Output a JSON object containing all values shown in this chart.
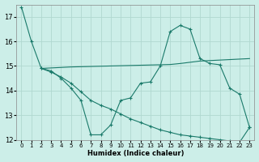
{
  "xlabel": "Humidex (Indice chaleur)",
  "bg_color": "#cceee8",
  "line_color": "#1a7a6a",
  "grid_color": "#b0d8d0",
  "xlim": [
    -0.5,
    23.5
  ],
  "ylim": [
    12,
    17.5
  ],
  "yticks": [
    12,
    13,
    14,
    15,
    16,
    17
  ],
  "xticks": [
    0,
    1,
    2,
    3,
    4,
    5,
    6,
    7,
    8,
    9,
    10,
    11,
    12,
    13,
    14,
    15,
    16,
    17,
    18,
    19,
    20,
    21,
    22,
    23
  ],
  "line1_x": [
    0,
    1,
    2,
    3,
    4,
    5,
    6,
    7,
    8,
    9,
    10,
    11,
    12,
    13,
    14,
    15,
    16,
    17,
    18,
    19,
    20,
    21,
    22,
    23
  ],
  "line1_y": [
    17.4,
    16.0,
    14.9,
    14.8,
    14.5,
    14.1,
    13.6,
    12.2,
    12.2,
    12.6,
    13.6,
    13.7,
    14.3,
    14.35,
    15.0,
    16.4,
    16.65,
    16.5,
    15.3,
    15.1,
    15.05,
    14.1,
    13.85,
    12.5
  ],
  "line2_x": [
    2,
    3,
    4,
    5,
    6,
    7,
    8,
    9,
    10,
    11,
    12,
    13,
    14,
    15,
    16,
    17,
    18,
    19,
    20,
    21,
    22,
    23
  ],
  "line2_y": [
    14.9,
    14.92,
    14.94,
    14.96,
    14.97,
    14.98,
    14.99,
    15.0,
    15.01,
    15.02,
    15.03,
    15.04,
    15.05,
    15.06,
    15.1,
    15.15,
    15.2,
    15.22,
    15.24,
    15.26,
    15.28,
    15.3
  ],
  "line3_x": [
    2,
    3,
    4,
    5,
    6,
    7,
    8,
    9,
    10,
    11,
    12,
    13,
    14,
    15,
    16,
    17,
    18,
    19,
    20,
    21,
    22,
    23
  ],
  "line3_y": [
    14.9,
    14.75,
    14.55,
    14.3,
    13.95,
    13.6,
    13.4,
    13.25,
    13.05,
    12.85,
    12.7,
    12.55,
    12.4,
    12.3,
    12.2,
    12.15,
    12.1,
    12.05,
    12.0,
    11.95,
    11.9,
    12.5
  ]
}
